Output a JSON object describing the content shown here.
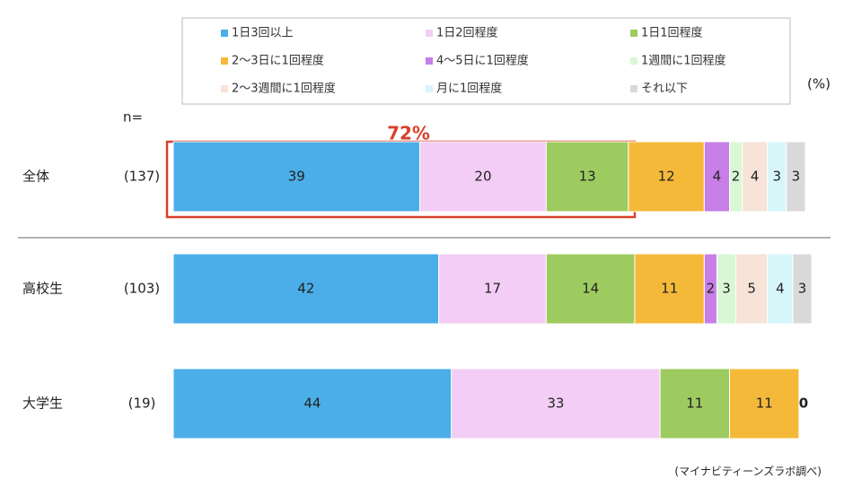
{
  "chart_data": {
    "type": "stacked_barh",
    "n_label": "n=",
    "unit_label": "(%)",
    "annotation": "72%",
    "source": "(マイナビティーンズラボ調べ)",
    "categories": [
      "全体",
      "高校生",
      "大学生"
    ],
    "n_values": [
      "(137)",
      "(103)",
      "(19)"
    ],
    "xlim": [
      0,
      100
    ],
    "series": [
      {
        "name": "1日3回以上",
        "color": "#4baee8",
        "values": [
          39,
          42,
          44
        ]
      },
      {
        "name": "1日2回程度",
        "color": "#f3cdf5",
        "values": [
          20,
          17,
          33
        ]
      },
      {
        "name": "1日1回程度",
        "color": "#9dcb5f",
        "values": [
          13,
          14,
          11
        ]
      },
      {
        "name": "2～3日に1回程度",
        "color": "#f5b93a",
        "values": [
          12,
          11,
          11
        ]
      },
      {
        "name": "4～5日に1回程度",
        "color": "#c77ee6",
        "values": [
          4,
          2,
          0
        ]
      },
      {
        "name": "1週間に1回程度",
        "color": "#d9f7d4",
        "values": [
          2,
          3,
          null
        ]
      },
      {
        "name": "2～3週間に1回程度",
        "color": "#f7e3d8",
        "values": [
          4,
          5,
          null
        ]
      },
      {
        "name": "月に1回程度",
        "color": "#d6f6fa",
        "values": [
          3,
          4,
          null
        ]
      },
      {
        "name": "それ以下",
        "color": "#d9d9d9",
        "values": [
          3,
          3,
          null
        ]
      }
    ]
  }
}
